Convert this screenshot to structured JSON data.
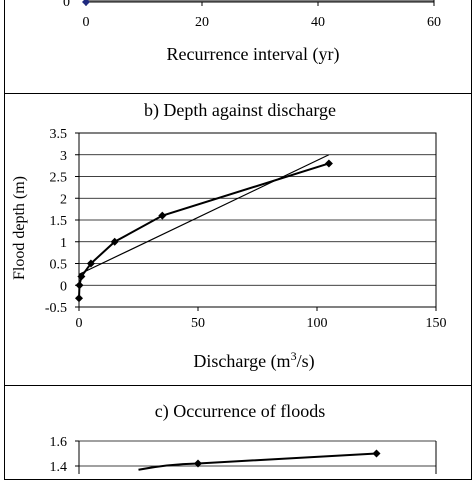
{
  "chart_data": [
    {
      "type": "scatter",
      "title": "",
      "xlabel": "Recurrence interval (yr)",
      "ylabel": "",
      "x_ticks": [
        "0",
        "20",
        "40",
        "60"
      ],
      "y_ticks": [
        "0"
      ],
      "xlim": [
        0,
        60
      ],
      "series": [
        {
          "x": [
            0
          ],
          "y": [
            0
          ]
        }
      ]
    },
    {
      "type": "line",
      "title": "b) Depth against discharge",
      "xlabel": "Discharge (m",
      "xlabel_sup": "3",
      "xlabel_tail": "/s)",
      "ylabel": "Flood depth (m)",
      "x_ticks": [
        "0",
        "50",
        "100",
        "150"
      ],
      "y_ticks": [
        "-0.5",
        "0",
        "0.5",
        "1",
        "1.5",
        "2",
        "2.5",
        "3",
        "3.5"
      ],
      "xlim": [
        0,
        150
      ],
      "ylim": [
        -0.5,
        3.5
      ],
      "grid": true,
      "series": [
        {
          "x": [
            0,
            0.2,
            1,
            5,
            15,
            35,
            105
          ],
          "y": [
            -0.3,
            0,
            0.2,
            0.5,
            1.0,
            1.6,
            2.8
          ],
          "marker": "diamond"
        },
        {
          "x": [
            0,
            105
          ],
          "y": [
            0.25,
            3.0
          ],
          "marker": "none",
          "trendline": true
        }
      ]
    },
    {
      "type": "line",
      "title": "c) Occurrence of floods",
      "xlabel": "",
      "ylabel": "",
      "y_ticks": [
        "1.4",
        "1.6"
      ],
      "ylim": [
        1.2,
        1.6
      ],
      "grid": true,
      "series": [
        {
          "x": [
            20,
            40,
            100
          ],
          "y": [
            1.37,
            1.42,
            1.5
          ],
          "marker": "diamond"
        }
      ]
    }
  ]
}
